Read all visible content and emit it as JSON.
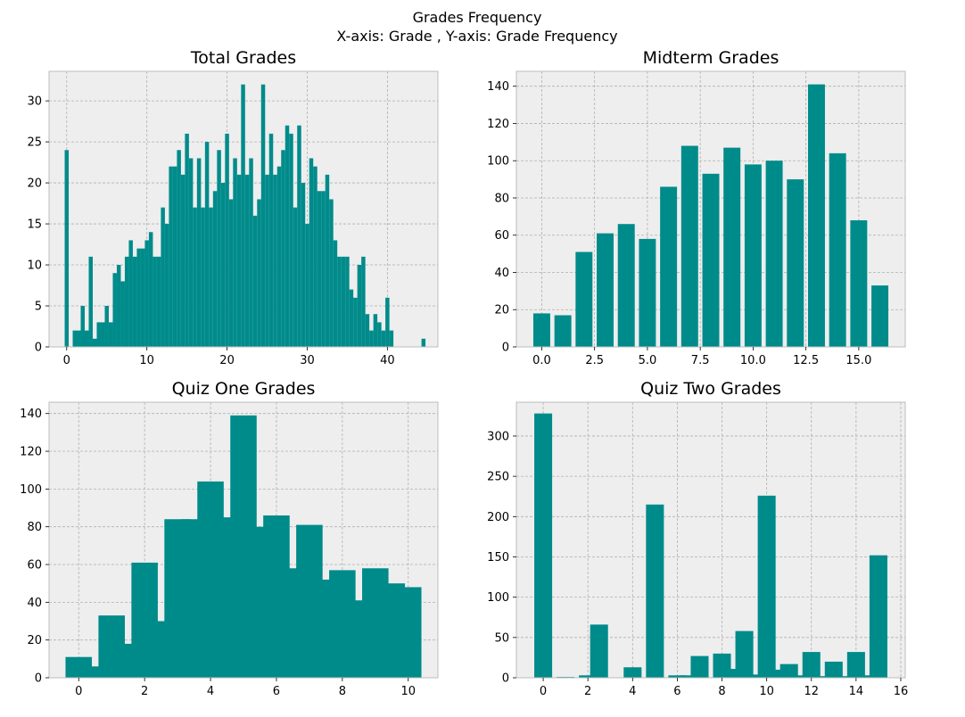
{
  "figure": {
    "title_line1": "Grades Frequency",
    "title_line2": "X-axis: Grade , Y-axis: Grade Frequency",
    "bar_color": "#008b8b",
    "panel_bg": "#eeeeee",
    "axis_color": "#bcbcbc"
  },
  "chart_data": [
    {
      "type": "bar",
      "title": "Total Grades",
      "xlabel": "",
      "ylabel": "",
      "xlim": [
        -2.2,
        46.3
      ],
      "ylim": [
        0,
        33.6
      ],
      "grid": true,
      "xticks": [
        0,
        10,
        20,
        30,
        40
      ],
      "xtick_labels": [
        "0",
        "10",
        "20",
        "30",
        "40"
      ],
      "yticks": [
        0,
        5,
        10,
        15,
        20,
        25,
        30
      ],
      "ytick_labels": [
        "0",
        "5",
        "10",
        "15",
        "20",
        "25",
        "30"
      ],
      "bar_width": 0.5,
      "x": [
        0,
        0.5,
        1,
        1.5,
        2,
        2.5,
        3,
        3.5,
        4,
        4.5,
        5,
        5.5,
        6,
        6.5,
        7,
        7.5,
        8,
        8.5,
        9,
        9.5,
        10,
        10.5,
        11,
        11.5,
        12,
        12.5,
        13,
        13.5,
        14,
        14.5,
        15,
        15.5,
        16,
        16.5,
        17,
        17.5,
        18,
        18.5,
        19,
        19.5,
        20,
        20.5,
        21,
        21.5,
        22,
        22.5,
        23,
        23.5,
        24,
        24.5,
        25,
        25.5,
        26,
        26.5,
        27,
        27.5,
        28,
        28.5,
        29,
        29.5,
        30,
        30.5,
        31,
        31.5,
        32,
        32.5,
        33,
        33.5,
        34,
        34.5,
        35,
        35.5,
        36,
        36.5,
        37,
        37.5,
        38,
        38.5,
        39,
        39.5,
        40,
        40.5,
        44.5
      ],
      "values": [
        24,
        0,
        2,
        2,
        5,
        2,
        11,
        1,
        3,
        3,
        5,
        3,
        9,
        10,
        8,
        11,
        13,
        11,
        12,
        12,
        13,
        14,
        11,
        11,
        17,
        15,
        22,
        22,
        24,
        21,
        26,
        23,
        17,
        23,
        17,
        25,
        17,
        19,
        24,
        20,
        26,
        18,
        23,
        21,
        32,
        21,
        23,
        16,
        18,
        32,
        21,
        26,
        21,
        22,
        24,
        27,
        26,
        17,
        27,
        20,
        15,
        23,
        22,
        19,
        19,
        21,
        18,
        13,
        11,
        11,
        11,
        7,
        6,
        10,
        11,
        4,
        2,
        4,
        3,
        2,
        6,
        2,
        1
      ]
    },
    {
      "type": "bar",
      "title": "Midterm Grades",
      "xlabel": "",
      "ylabel": "",
      "xlim": [
        -1.2,
        17.2
      ],
      "ylim": [
        0,
        148
      ],
      "grid": true,
      "xticks": [
        0,
        2.5,
        5,
        7.5,
        10,
        12.5,
        15
      ],
      "xtick_labels": [
        "0.0",
        "2.5",
        "5.0",
        "7.5",
        "10.0",
        "12.5",
        "15.0"
      ],
      "yticks": [
        0,
        20,
        40,
        60,
        80,
        100,
        120,
        140
      ],
      "ytick_labels": [
        "0",
        "20",
        "40",
        "60",
        "80",
        "100",
        "120",
        "140"
      ],
      "bar_width": 0.8,
      "x": [
        0,
        1,
        2,
        3,
        4,
        5,
        6,
        7,
        8,
        9,
        10,
        11,
        12,
        13,
        14,
        15,
        16
      ],
      "values": [
        18,
        17,
        51,
        61,
        66,
        58,
        86,
        108,
        93,
        107,
        98,
        100,
        90,
        141,
        104,
        68,
        33
      ]
    },
    {
      "type": "bar",
      "title": "Quiz One Grades",
      "xlabel": "",
      "ylabel": "",
      "xlim": [
        -0.9,
        10.9
      ],
      "ylim": [
        0,
        146
      ],
      "grid": true,
      "xticks": [
        0,
        2,
        4,
        6,
        8,
        10
      ],
      "xtick_labels": [
        "0",
        "2",
        "4",
        "6",
        "8",
        "10"
      ],
      "yticks": [
        0,
        20,
        40,
        60,
        80,
        100,
        120,
        140
      ],
      "ytick_labels": [
        "0",
        "20",
        "40",
        "60",
        "80",
        "100",
        "120",
        "140"
      ],
      "bar_width": 0.8,
      "x": [
        0,
        0.5,
        1,
        1.5,
        2,
        2.5,
        3,
        3.5,
        4,
        4.5,
        5,
        5.5,
        6,
        6.5,
        7,
        7.5,
        8,
        8.5,
        9,
        9.5,
        10
      ],
      "values": [
        11,
        6,
        33,
        18,
        61,
        30,
        84,
        84,
        104,
        85,
        139,
        80,
        86,
        58,
        81,
        52,
        57,
        41,
        58,
        50,
        48
      ]
    },
    {
      "type": "bar",
      "title": "Quiz Two Grades",
      "xlabel": "",
      "ylabel": "",
      "xlim": [
        -1.2,
        16.2
      ],
      "ylim": [
        0,
        342
      ],
      "grid": true,
      "xticks": [
        0,
        2,
        4,
        6,
        8,
        10,
        12,
        14,
        16
      ],
      "xtick_labels": [
        "0",
        "2",
        "4",
        "6",
        "8",
        "10",
        "12",
        "14",
        "16"
      ],
      "yticks": [
        0,
        50,
        100,
        150,
        200,
        250,
        300
      ],
      "ytick_labels": [
        "0",
        "50",
        "100",
        "150",
        "200",
        "250",
        "300"
      ],
      "bar_width": 0.8,
      "x": [
        0,
        1,
        2,
        2.5,
        3,
        4,
        4.5,
        5,
        6,
        6.5,
        7,
        7.5,
        8,
        8.5,
        9,
        9.5,
        10,
        10.5,
        11,
        11.5,
        12,
        12.5,
        13,
        13.5,
        14,
        14.5,
        15
      ],
      "values": [
        328,
        1,
        3,
        66,
        0,
        13,
        0,
        215,
        3,
        3,
        27,
        0,
        30,
        11,
        58,
        4,
        226,
        10,
        17,
        3,
        32,
        2,
        20,
        2,
        32,
        3,
        152
      ]
    }
  ]
}
